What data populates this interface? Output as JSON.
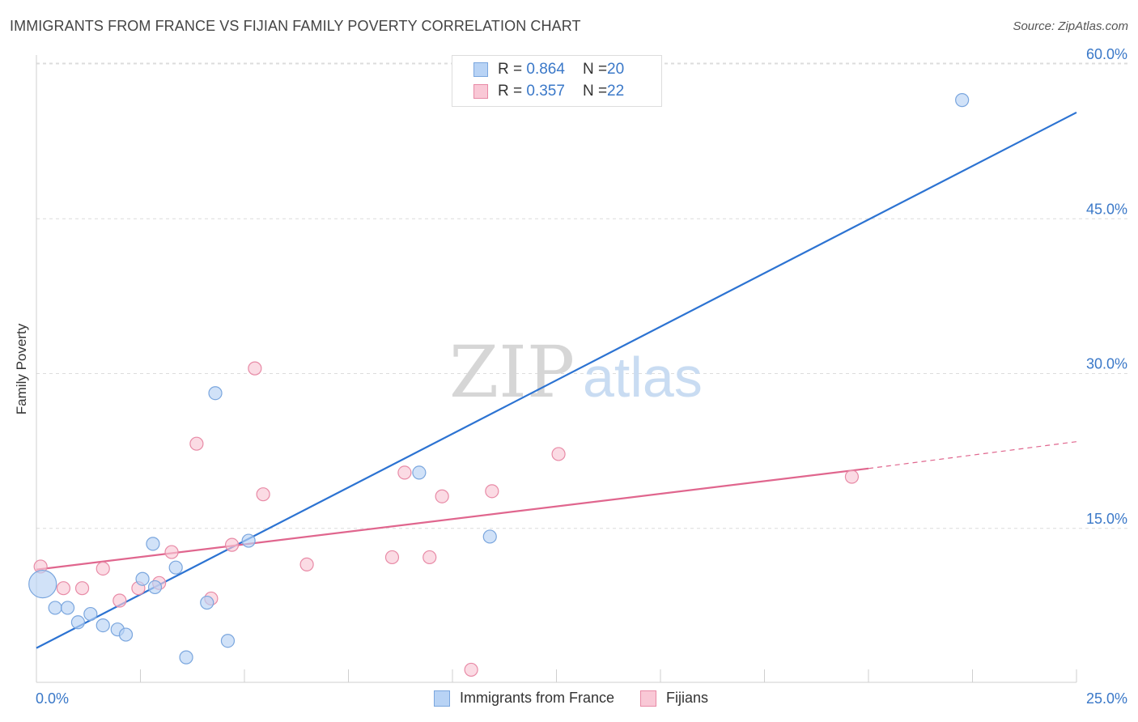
{
  "header": {
    "title": "IMMIGRANTS FROM FRANCE VS FIJIAN FAMILY POVERTY CORRELATION CHART",
    "source": "Source: ZipAtlas.com"
  },
  "watermark": {
    "zip": "ZIP",
    "atlas": "atlas"
  },
  "legend": {
    "rows": [
      {
        "r_label": "R = ",
        "r_value": "0.864",
        "n_label": "N = ",
        "n_value": "20",
        "color": "#b8d3f5",
        "border": "#7aa6de"
      },
      {
        "r_label": "R = ",
        "r_value": "0.357",
        "n_label": "N = ",
        "n_value": "22",
        "color": "#f9c8d6",
        "border": "#e88aa6"
      }
    ]
  },
  "bottom_legend": [
    {
      "label": "Immigrants from France",
      "color": "#b8d3f5",
      "border": "#7aa6de"
    },
    {
      "label": "Fijians",
      "color": "#f9c8d6",
      "border": "#e88aa6"
    }
  ],
  "chart_data": {
    "type": "scatter",
    "title": "IMMIGRANTS FROM FRANCE VS FIJIAN FAMILY POVERTY CORRELATION CHART",
    "xlabel": "",
    "ylabel": "Family Poverty",
    "xlim": [
      0,
      25
    ],
    "ylim": [
      0,
      60
    ],
    "x_tick_labels": [
      "0.0%",
      "25.0%"
    ],
    "y_ticks": [
      15,
      30,
      45,
      60
    ],
    "y_tick_labels": [
      "15.0%",
      "30.0%",
      "45.0%",
      "60.0%"
    ],
    "grid": true,
    "series": [
      {
        "name": "Immigrants from France",
        "color": "#7aa6de",
        "fill": "#b8d3f5",
        "line_color": "#2c73d2",
        "points": [
          {
            "x": 0.15,
            "y": 9.6,
            "big": true
          },
          {
            "x": 0.45,
            "y": 7.3
          },
          {
            "x": 0.75,
            "y": 7.3
          },
          {
            "x": 1.0,
            "y": 5.9
          },
          {
            "x": 1.3,
            "y": 6.7
          },
          {
            "x": 1.6,
            "y": 5.6
          },
          {
            "x": 1.95,
            "y": 5.2
          },
          {
            "x": 2.15,
            "y": 4.7
          },
          {
            "x": 2.55,
            "y": 10.1
          },
          {
            "x": 2.8,
            "y": 13.5
          },
          {
            "x": 2.85,
            "y": 9.3
          },
          {
            "x": 3.35,
            "y": 11.2
          },
          {
            "x": 3.6,
            "y": 2.5
          },
          {
            "x": 4.1,
            "y": 7.8
          },
          {
            "x": 4.3,
            "y": 28.1
          },
          {
            "x": 4.6,
            "y": 4.1
          },
          {
            "x": 5.1,
            "y": 13.8
          },
          {
            "x": 9.2,
            "y": 20.4
          },
          {
            "x": 10.9,
            "y": 14.2
          },
          {
            "x": 22.25,
            "y": 56.5
          }
        ],
        "trend": {
          "x0": 0,
          "y0": 3.4,
          "x1": 25,
          "y1": 55.3
        }
      },
      {
        "name": "Fijians",
        "color": "#e88aa6",
        "fill": "#f9c8d6",
        "line_color": "#e0668e",
        "points": [
          {
            "x": 0.1,
            "y": 11.3
          },
          {
            "x": 0.65,
            "y": 9.2
          },
          {
            "x": 1.1,
            "y": 9.2
          },
          {
            "x": 1.6,
            "y": 11.1
          },
          {
            "x": 2.0,
            "y": 8.0
          },
          {
            "x": 2.45,
            "y": 9.2
          },
          {
            "x": 2.95,
            "y": 9.7
          },
          {
            "x": 3.25,
            "y": 12.7
          },
          {
            "x": 3.85,
            "y": 23.2
          },
          {
            "x": 4.2,
            "y": 8.2
          },
          {
            "x": 4.7,
            "y": 13.4
          },
          {
            "x": 5.25,
            "y": 30.5
          },
          {
            "x": 5.45,
            "y": 18.3
          },
          {
            "x": 6.5,
            "y": 11.5
          },
          {
            "x": 8.55,
            "y": 12.2
          },
          {
            "x": 8.85,
            "y": 20.4
          },
          {
            "x": 9.45,
            "y": 12.2
          },
          {
            "x": 9.75,
            "y": 18.1
          },
          {
            "x": 10.45,
            "y": 1.3
          },
          {
            "x": 10.95,
            "y": 18.6
          },
          {
            "x": 12.55,
            "y": 22.2
          },
          {
            "x": 19.6,
            "y": 20.0
          }
        ],
        "trend": {
          "x0": 0,
          "y0": 11.0,
          "x1": 20,
          "y1": 20.8
        },
        "trend_dashed": {
          "x0": 20,
          "y0": 20.8,
          "x1": 25,
          "y1": 23.4
        }
      }
    ]
  }
}
